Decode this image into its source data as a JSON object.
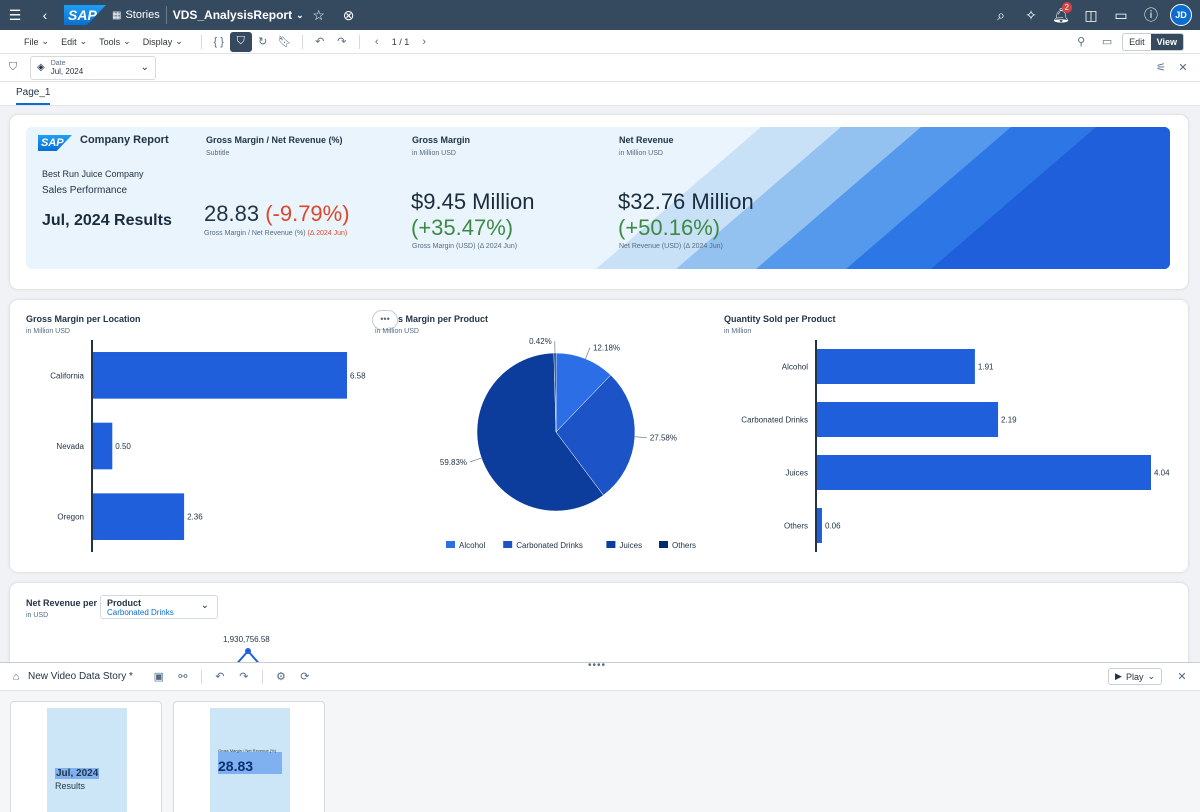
{
  "shell": {
    "breadcrumb": "Stories",
    "story_title": "VDS_AnalysisReport",
    "notification_count": "2",
    "user_initials": "JD"
  },
  "toolbar": {
    "menus": [
      "File",
      "Edit",
      "Tools",
      "Display"
    ],
    "page_indicator": "1 / 1",
    "mode_edit": "Edit",
    "mode_view": "View"
  },
  "filter": {
    "label": "Date",
    "value": "Jul, 2024"
  },
  "page_tab": "Page_1",
  "header_card": {
    "company_report": "Company Report",
    "company_name": "Best Run Juice Company",
    "sales_performance": "Sales Performance",
    "period_results": "Jul, 2024 Results",
    "kpis": [
      {
        "title": "Gross Margin / Net Revenue (%)",
        "subtitle": "Subtitle",
        "value": "28.83",
        "delta": "(-9.79%)",
        "delta_color": "#d9482b",
        "caption": "Gross Margin / Net Revenue (%)",
        "caption_delta": "(Δ 2024 Jun)"
      },
      {
        "title": "Gross Margin",
        "subtitle": "in Million USD",
        "value": "$9.45 Million",
        "delta": "(+35.47%)",
        "delta_color": "#3d8a45",
        "caption": "Gross Margin (USD) (Δ 2024 Jun)"
      },
      {
        "title": "Net Revenue",
        "subtitle": "in Million USD",
        "value": "$32.76 Million",
        "delta": "(+50.16%)",
        "delta_color": "#3d8a45",
        "caption": "Net Revenue (USD) (Δ 2024 Jun)"
      }
    ]
  },
  "chart_data": [
    {
      "type": "bar",
      "title": "Gross Margin per Location",
      "subtitle": "in Million USD",
      "categories": [
        "California",
        "Nevada",
        "Oregon"
      ],
      "values": [
        6.58,
        0.5,
        2.36
      ],
      "labels": [
        "6.58",
        "0.50",
        "2.36"
      ],
      "orientation": "horizontal",
      "color": "#1f5fdc"
    },
    {
      "type": "pie",
      "title": "Gross Margin per Product",
      "title_visible": "s Margin per Product",
      "subtitle": "in Million USD",
      "subtitle_visible": "in Million USD",
      "categories": [
        "Alcohol",
        "Carbonated Drinks",
        "Juices",
        "Others"
      ],
      "values": [
        12.18,
        27.58,
        59.83,
        0.42
      ],
      "labels": [
        "12.18%",
        "27.58%",
        "59.83%",
        "0.42%"
      ],
      "colors": [
        "#2b6ee6",
        "#1c54c8",
        "#0c3c9c",
        "#002a6e"
      ],
      "legend": "bottom"
    },
    {
      "type": "bar",
      "title": "Quantity Sold per Product",
      "subtitle": "in Million",
      "categories": [
        "Alcohol",
        "Carbonated Drinks",
        "Juices",
        "Others"
      ],
      "values": [
        1.91,
        2.19,
        4.04,
        0.06
      ],
      "labels": [
        "1.91",
        "2.19",
        "4.04",
        "0.06"
      ],
      "orientation": "horizontal",
      "color": "#1f5fdc"
    },
    {
      "type": "line",
      "title": "Net Revenue per",
      "subtitle": "in USD",
      "dropdown_label": "Product",
      "dropdown_value": "Carbonated Drinks",
      "peak_label": "1,930,756.58"
    }
  ],
  "bottom_panel": {
    "title": "New Video Data Story *",
    "play_label": "Play",
    "thumb1_line1": "Jul, 2024",
    "thumb1_line2": "Results",
    "thumb2_caption": "Gross Margin / Net Revenue (%)",
    "thumb2_value": "28.83"
  },
  "colors": {
    "shell": "#354a5f",
    "accent": "#0a6ed1",
    "bar": "#1f5fdc"
  }
}
